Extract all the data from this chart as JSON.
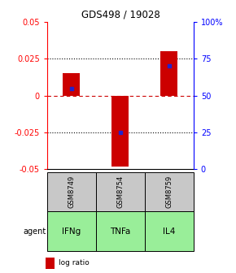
{
  "title": "GDS498 / 19028",
  "samples": [
    "GSM8749",
    "GSM8754",
    "GSM8759"
  ],
  "agents": [
    "IFNg",
    "TNFa",
    "IL4"
  ],
  "log_ratios": [
    0.015,
    -0.048,
    0.03
  ],
  "percentile_ranks": [
    55,
    25,
    70
  ],
  "ylim_left": [
    -0.05,
    0.05
  ],
  "ylim_right": [
    0,
    100
  ],
  "yticks_left": [
    -0.05,
    -0.025,
    0,
    0.025,
    0.05
  ],
  "ytick_labels_left": [
    "-0.05",
    "-0.025",
    "0",
    "0.025",
    "0.05"
  ],
  "yticks_right": [
    0,
    25,
    50,
    75,
    100
  ],
  "ytick_labels_right": [
    "0",
    "25",
    "50",
    "75",
    "100%"
  ],
  "bar_color": "#cc0000",
  "percentile_color": "#2222cc",
  "sample_box_color": "#c8c8c8",
  "agent_box_color": "#99ee99",
  "zero_line_color": "#cc0000",
  "background_color": "#ffffff",
  "bar_width": 0.35
}
